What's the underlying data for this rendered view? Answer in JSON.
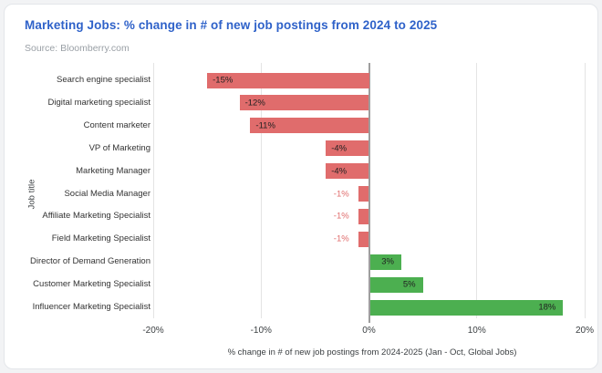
{
  "header": {
    "title": "Marketing Jobs: % change in # of new job postings from 2024 to 2025",
    "title_color": "#2f62c9",
    "source": "Source: Bloomberry.com",
    "source_color": "#9aa0a6"
  },
  "chart_data": {
    "type": "bar",
    "orientation": "horizontal",
    "title": "Marketing Jobs: % change in # of new job postings from 2024 to 2025",
    "xlabel": "% change in # of new job postings from 2024-2025 (Jan - Oct, Global Jobs)",
    "ylabel": "Job title",
    "categories": [
      "Search engine specialist",
      "Digital marketing specialist",
      "Content marketer",
      "VP of Marketing",
      "Marketing Manager",
      "Social Media Manager",
      "Affiliate Marketing Specialist",
      "Field Marketing Specialist",
      "Director of Demand Generation",
      "Customer Marketing Specialist",
      "Influencer Marketing Specialist"
    ],
    "values": [
      -15,
      -12,
      -11,
      -4,
      -4,
      -1,
      -1,
      -1,
      3,
      5,
      18
    ],
    "value_labels": [
      "-15%",
      "-12%",
      "-11%",
      "-4%",
      "-4%",
      "-1%",
      "-1%",
      "-1%",
      "3%",
      "5%",
      "18%"
    ],
    "xlim": [
      -20,
      20
    ],
    "xticks": [
      -20,
      -10,
      0,
      10,
      20
    ],
    "xtick_labels": [
      "-20%",
      "-10%",
      "0%",
      "10%",
      "20%"
    ],
    "grid": true,
    "legend": "none",
    "colors": {
      "negative_bar": "#e06c6c",
      "positive_bar": "#4caf50",
      "outside_label": "#e06c6c",
      "inside_label": "#212121",
      "gridline": "#e4e4e4",
      "zero_line": "#9e9e9e"
    }
  }
}
